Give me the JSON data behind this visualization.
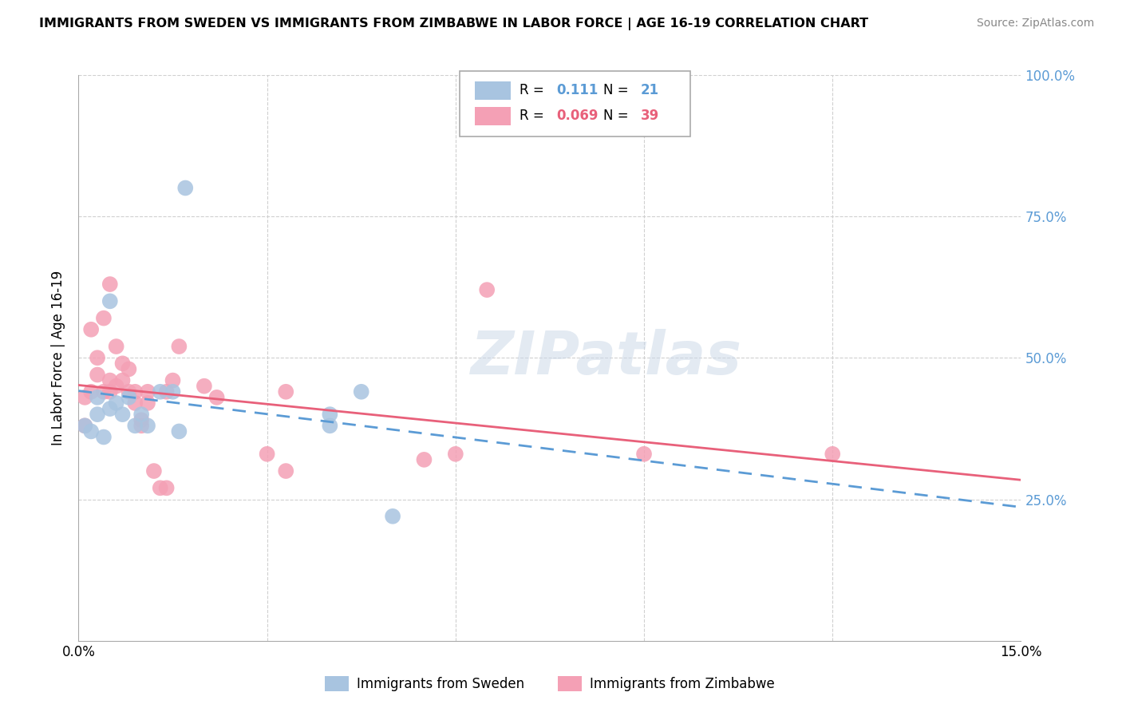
{
  "title": "IMMIGRANTS FROM SWEDEN VS IMMIGRANTS FROM ZIMBABWE IN LABOR FORCE | AGE 16-19 CORRELATION CHART",
  "source": "Source: ZipAtlas.com",
  "ylabel": "In Labor Force | Age 16-19",
  "xlim": [
    0.0,
    0.15
  ],
  "ylim": [
    0.0,
    1.0
  ],
  "sweden_color": "#a8c4e0",
  "zimbabwe_color": "#f4a0b5",
  "sweden_line_color": "#5b9bd5",
  "zimbabwe_line_color": "#e8607a",
  "sweden_R": 0.111,
  "sweden_N": 21,
  "zimbabwe_R": 0.069,
  "zimbabwe_N": 39,
  "sweden_x": [
    0.001,
    0.002,
    0.003,
    0.003,
    0.004,
    0.005,
    0.005,
    0.006,
    0.007,
    0.008,
    0.009,
    0.01,
    0.011,
    0.013,
    0.015,
    0.016,
    0.017,
    0.04,
    0.04,
    0.045,
    0.05
  ],
  "sweden_y": [
    0.38,
    0.37,
    0.4,
    0.43,
    0.36,
    0.41,
    0.6,
    0.42,
    0.4,
    0.43,
    0.38,
    0.4,
    0.38,
    0.44,
    0.44,
    0.37,
    0.8,
    0.38,
    0.4,
    0.44,
    0.22
  ],
  "zimbabwe_x": [
    0.001,
    0.001,
    0.002,
    0.002,
    0.003,
    0.003,
    0.004,
    0.004,
    0.005,
    0.005,
    0.005,
    0.006,
    0.006,
    0.007,
    0.007,
    0.008,
    0.008,
    0.009,
    0.009,
    0.01,
    0.01,
    0.011,
    0.011,
    0.012,
    0.013,
    0.014,
    0.014,
    0.015,
    0.016,
    0.02,
    0.022,
    0.03,
    0.033,
    0.033,
    0.055,
    0.06,
    0.065,
    0.09,
    0.12
  ],
  "zimbabwe_y": [
    0.38,
    0.43,
    0.44,
    0.55,
    0.47,
    0.5,
    0.44,
    0.57,
    0.44,
    0.46,
    0.63,
    0.45,
    0.52,
    0.46,
    0.49,
    0.44,
    0.48,
    0.42,
    0.44,
    0.38,
    0.39,
    0.42,
    0.44,
    0.3,
    0.27,
    0.27,
    0.44,
    0.46,
    0.52,
    0.45,
    0.43,
    0.33,
    0.3,
    0.44,
    0.32,
    0.33,
    0.62,
    0.33,
    0.33
  ],
  "watermark": "ZIPatlas",
  "background_color": "#ffffff",
  "grid_color": "#d0d0d0"
}
